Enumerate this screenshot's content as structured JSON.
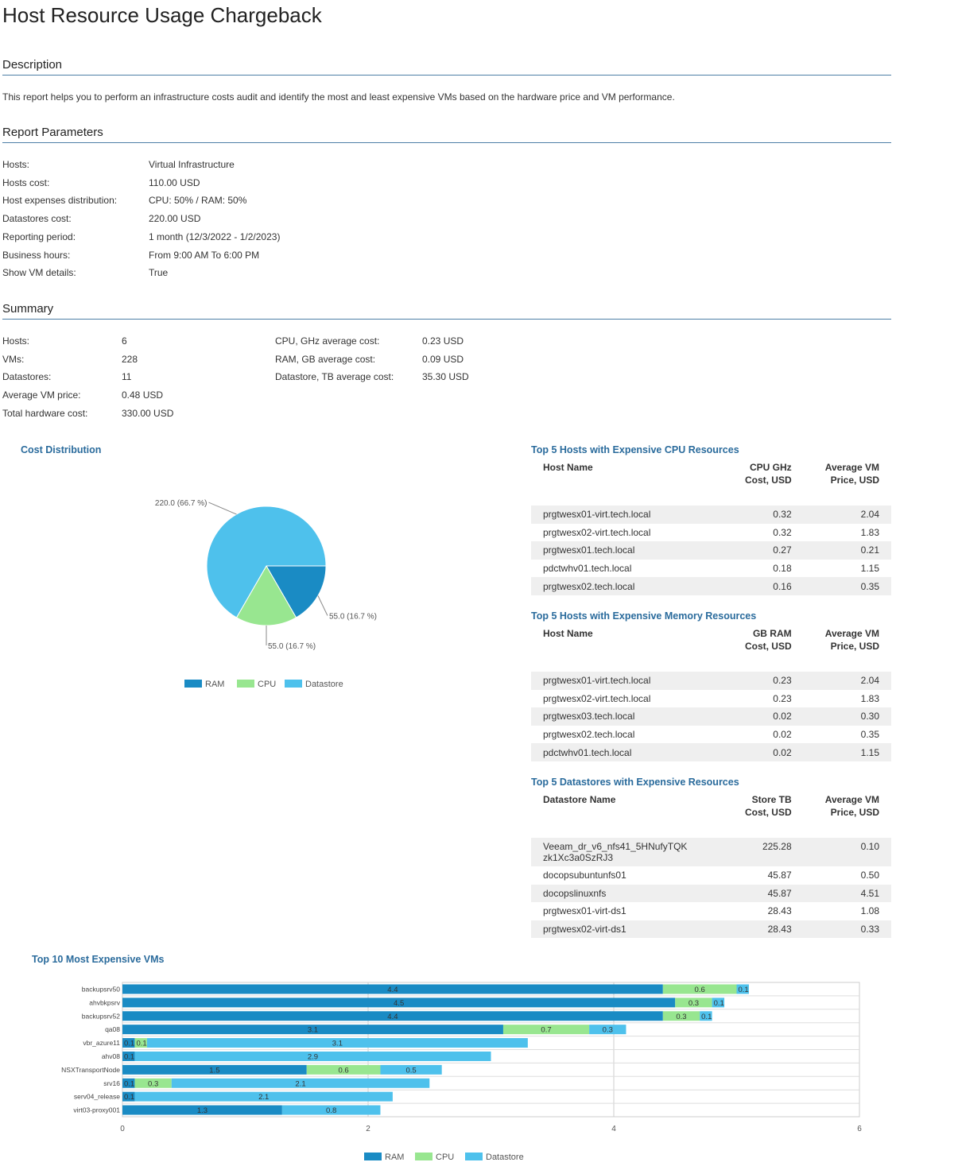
{
  "title": "Host Resource Usage Chargeback",
  "description": {
    "heading": "Description",
    "text": "This report helps you to perform an infrastructure costs audit and identify the most and least expensive VMs based on the hardware price and VM performance."
  },
  "parameters": {
    "heading": "Report Parameters",
    "rows": [
      {
        "label": "Hosts:",
        "value": "Virtual Infrastructure"
      },
      {
        "label": "Hosts cost:",
        "value": "110.00 USD"
      },
      {
        "label": "Host expenses distribution:",
        "value": "CPU: 50% / RAM: 50%"
      },
      {
        "label": "Datastores cost:",
        "value": "220.00 USD"
      },
      {
        "label": "Reporting period:",
        "value": "1 month (12/3/2022 - 1/2/2023)"
      },
      {
        "label": "Business hours:",
        "value": "From 9:00 AM To 6:00 PM"
      },
      {
        "label": "Show VM details:",
        "value": "True"
      }
    ]
  },
  "summary": {
    "heading": "Summary",
    "left": [
      {
        "label": "Hosts:",
        "value": "6"
      },
      {
        "label": "VMs:",
        "value": "228"
      },
      {
        "label": "Datastores:",
        "value": "11"
      },
      {
        "label": "Average VM price:",
        "value": "0.48 USD"
      },
      {
        "label": "Total hardware cost:",
        "value": "330.00 USD"
      }
    ],
    "right": [
      {
        "label": "CPU, GHz average cost:",
        "value": "0.23 USD"
      },
      {
        "label": "RAM, GB average cost:",
        "value": "0.09 USD"
      },
      {
        "label": "Datastore, TB average cost:",
        "value": "35.30 USD"
      }
    ]
  },
  "cost_distribution": {
    "title": "Cost Distribution",
    "legend": [
      "RAM",
      "CPU",
      "Datastore"
    ]
  },
  "top_cpu": {
    "title": "Top 5 Hosts with Expensive CPU Resources",
    "headers": [
      "Host Name",
      "CPU GHz\nCost, USD",
      "Average VM\nPrice, USD"
    ],
    "rows": [
      [
        "prgtwesx01-virt.tech.local",
        "0.32",
        "2.04"
      ],
      [
        "prgtwesx02-virt.tech.local",
        "0.32",
        "1.83"
      ],
      [
        "prgtwesx01.tech.local",
        "0.27",
        "0.21"
      ],
      [
        "pdctwhv01.tech.local",
        "0.18",
        "1.15"
      ],
      [
        "prgtwesx02.tech.local",
        "0.16",
        "0.35"
      ]
    ]
  },
  "top_mem": {
    "title": "Top 5 Hosts with Expensive Memory Resources",
    "headers": [
      "Host Name",
      "GB RAM\nCost, USD",
      "Average VM\nPrice, USD"
    ],
    "rows": [
      [
        "prgtwesx01-virt.tech.local",
        "0.23",
        "2.04"
      ],
      [
        "prgtwesx02-virt.tech.local",
        "0.23",
        "1.83"
      ],
      [
        "prgtwesx03.tech.local",
        "0.02",
        "0.30"
      ],
      [
        "prgtwesx02.tech.local",
        "0.02",
        "0.35"
      ],
      [
        "pdctwhv01.tech.local",
        "0.02",
        "1.15"
      ]
    ]
  },
  "top_ds": {
    "title": "Top 5 Datastores with Expensive Resources",
    "headers": [
      "Datastore Name",
      "Store TB\nCost, USD",
      "Average VM\nPrice, USD"
    ],
    "rows": [
      [
        "Veeam_dr_v6_nfs41_5HNufyTQK\nzk1Xc3a0SzRJ3",
        "225.28",
        "0.10"
      ],
      [
        "docopsubuntunfs01",
        "45.87",
        "0.50"
      ],
      [
        "docopslinuxnfs",
        "45.87",
        "4.51"
      ],
      [
        "prgtwesx01-virt-ds1",
        "28.43",
        "1.08"
      ],
      [
        "prgtwesx02-virt-ds1",
        "28.43",
        "0.33"
      ]
    ]
  },
  "top_vms": {
    "title": "Top 10 Most Expensive VMs",
    "legend": [
      "RAM",
      "CPU",
      "Datastore"
    ]
  },
  "colors": {
    "ram": "#1a8bc4",
    "cpu": "#98e690",
    "datastore": "#4ec1ec",
    "accent": "#2a6b9c"
  },
  "chart_data": [
    {
      "type": "pie",
      "title": "Cost Distribution",
      "categories": [
        "RAM",
        "CPU",
        "Datastore"
      ],
      "values": [
        55.0,
        55.0,
        220.0
      ],
      "labels": [
        "55.0 (16.7 %)",
        "55.0 (16.7 %)",
        "220.0 (66.7 %)"
      ],
      "legend": "bottom"
    },
    {
      "type": "bar",
      "orientation": "horizontal",
      "stacked": true,
      "title": "Top 10 Most Expensive VMs",
      "categories": [
        "backupsrv50",
        "ahvbkpsrv",
        "backupsrv52",
        "qa08",
        "vbr_azure11",
        "ahv08",
        "NSXTransportNode",
        "srv16",
        "serv04_release",
        "virt03-proxy001"
      ],
      "series": [
        {
          "name": "RAM",
          "values": [
            4.4,
            4.5,
            4.4,
            3.1,
            0.1,
            0.1,
            1.5,
            0.1,
            0.1,
            1.3
          ]
        },
        {
          "name": "CPU",
          "values": [
            0.6,
            0.3,
            0.3,
            0.7,
            0.1,
            0.0,
            0.6,
            0.3,
            0.0,
            0.0
          ]
        },
        {
          "name": "Datastore",
          "values": [
            0.1,
            0.1,
            0.1,
            0.3,
            3.1,
            2.9,
            0.5,
            2.1,
            2.1,
            0.8
          ]
        }
      ],
      "xlim": [
        0,
        6
      ],
      "xticks": [
        0,
        2,
        4,
        6
      ],
      "grid": true,
      "legend": "bottom"
    }
  ]
}
